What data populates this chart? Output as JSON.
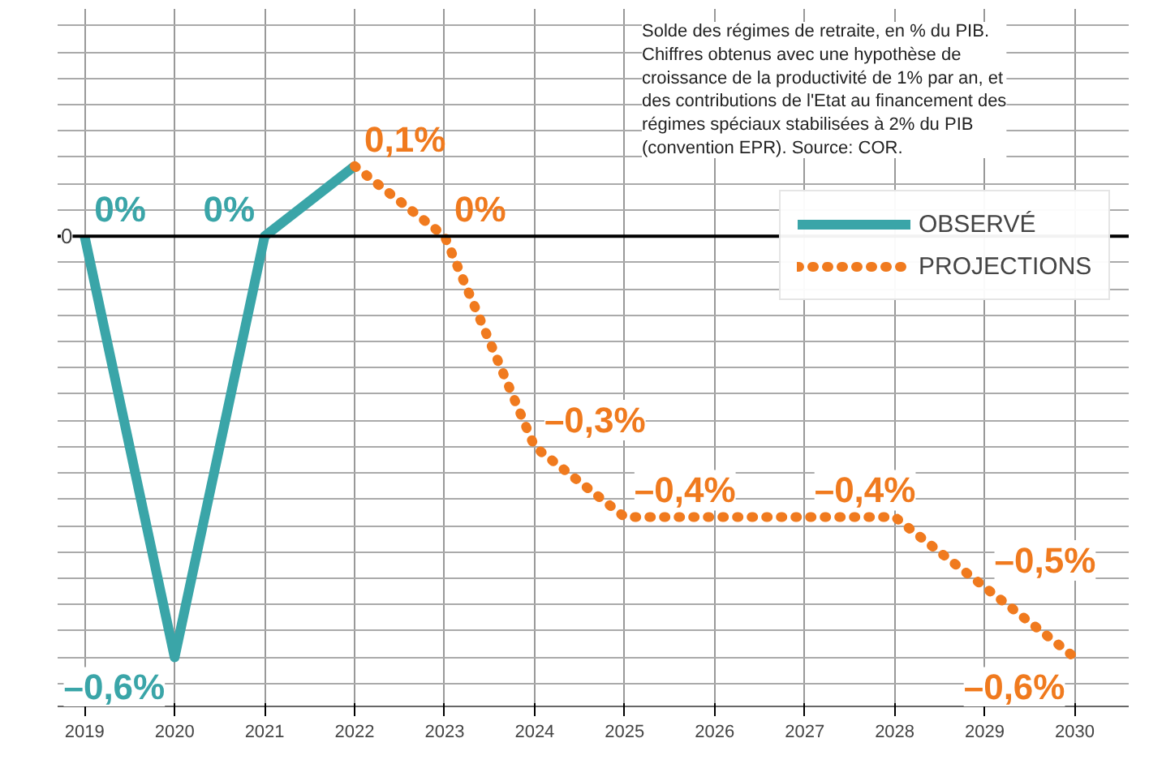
{
  "chart_data": {
    "type": "line",
    "annotations": [
      "Solde des régimes de retraite, en % du PIB. Chiffres obtenus avec une hypothèse de croissance de la productivité de 1% par an, et des contributions de l'Etat au financement des régimes spéciaux stabilisées à 2% du PIB (convention EPR). Source: COR.",
      {
        "text": "0",
        "y": 0
      }
    ],
    "xlim": [
      2018.7,
      2030.6
    ],
    "xticks": [
      2019,
      2020,
      2021,
      2022,
      2023,
      2024,
      2025,
      2026,
      2027,
      2028,
      2029,
      2030
    ],
    "grid": true,
    "legend": "top right",
    "ref_lines": [
      {
        "axis": "y",
        "value": 0,
        "color": "#000000"
      }
    ],
    "series": [
      {
        "name": "OBSERVÉ",
        "color": "#3aa5a8",
        "line_style": "solid",
        "x": [
          2019,
          2020,
          2021,
          2022
        ],
        "values": [
          0,
          -0.6,
          0,
          0.1
        ],
        "value_labels": [
          "0%",
          "–0,6%",
          "0%",
          null
        ]
      },
      {
        "name": "PROJECTIONS",
        "color": "#f07a1e",
        "line_style": "dotted",
        "x": [
          2022,
          2023,
          2024,
          2025,
          2026,
          2027,
          2028,
          2029,
          2030
        ],
        "values": [
          0.1,
          0,
          -0.3,
          -0.4,
          -0.4,
          -0.4,
          -0.4,
          -0.5,
          -0.6
        ],
        "value_labels": [
          "0,1%",
          "0%",
          "–0,3%",
          "–0,4%",
          null,
          "–0,4%",
          null,
          "–0,5%",
          "–0,6%"
        ]
      }
    ]
  }
}
